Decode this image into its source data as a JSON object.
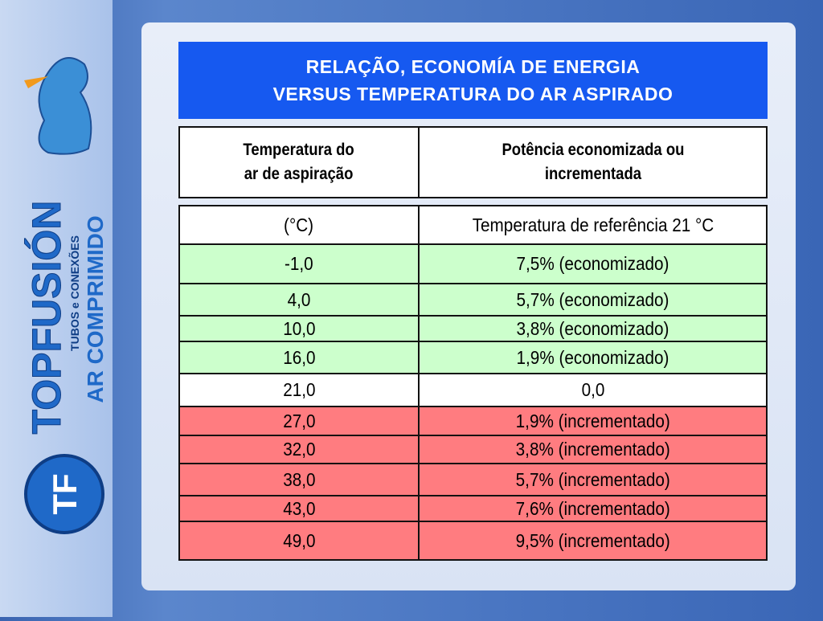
{
  "title": [
    "RELAÇÃO, ECONOMÍA DE ENERGIA",
    "VERSUS TEMPERATURA DO AR ASPIRADO"
  ],
  "logo": {
    "brand": "TOPFUSIÓN",
    "tagline": "TUBOS e CONEXÕES",
    "product": "AR COMPRIMIDO",
    "monogram": "TF"
  },
  "table": {
    "header": [
      "Temperatura do\nar de aspiração",
      "Potência economizada ou\nincrementada"
    ],
    "rows": [
      [
        "(°C)",
        "Temperatura de referência 21 °C"
      ],
      [
        "-1,0",
        "7,5% (economizado)"
      ],
      [
        "4,0",
        "5,7% (economizado)"
      ],
      [
        "10,0",
        "3,8% (economizado)"
      ],
      [
        "16,0",
        "1,9% (economizado)"
      ],
      [
        "21,0",
        "0,0"
      ],
      [
        "27,0",
        "1,9% (incrementado)"
      ],
      [
        "32,0",
        "3,8% (incrementado)"
      ],
      [
        "38,0",
        "5,7% (incrementado)"
      ],
      [
        "43,0",
        "7,6% (incrementado)"
      ],
      [
        "49,0",
        "9,5% (incrementado)"
      ]
    ]
  }
}
